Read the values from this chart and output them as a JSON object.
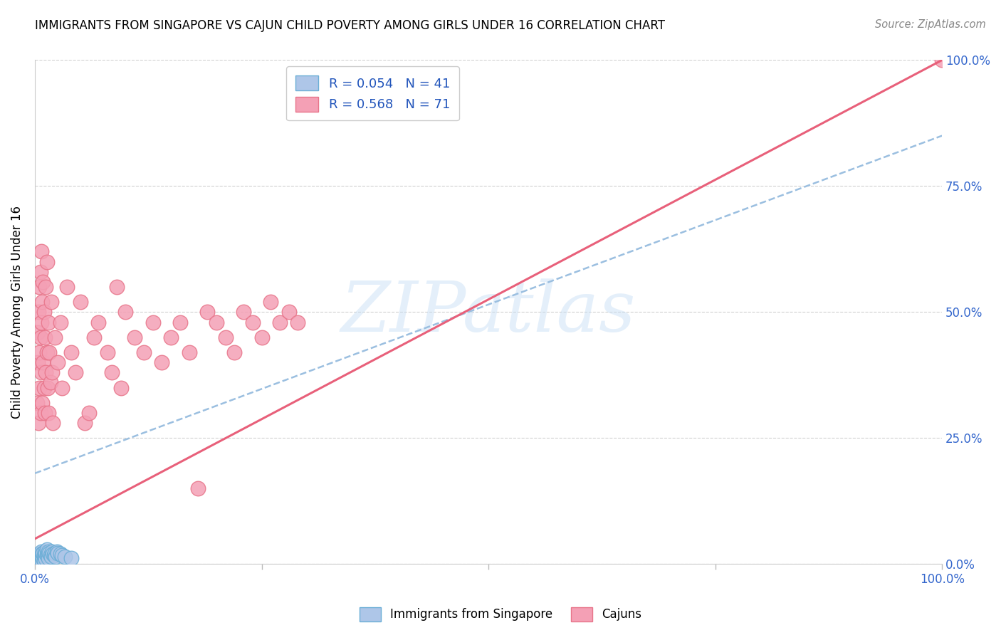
{
  "title": "IMMIGRANTS FROM SINGAPORE VS CAJUN CHILD POVERTY AMONG GIRLS UNDER 16 CORRELATION CHART",
  "source": "Source: ZipAtlas.com",
  "ylabel": "Child Poverty Among Girls Under 16",
  "legend_blue_r": "R = 0.054",
  "legend_blue_n": "N = 41",
  "legend_pink_r": "R = 0.568",
  "legend_pink_n": "N = 71",
  "watermark": "ZIPatlas",
  "blue_fill": "#aec6e8",
  "blue_edge": "#6baed6",
  "pink_fill": "#f4a0b5",
  "pink_edge": "#e8758a",
  "trend_blue_color": "#9bbfe0",
  "trend_pink_color": "#e8607a",
  "bottom_legend_blue": "Immigrants from Singapore",
  "bottom_legend_pink": "Cajuns",
  "xlim": [
    0.0,
    1.0
  ],
  "ylim": [
    0.0,
    1.0
  ],
  "ytick_values": [
    0.0,
    0.25,
    0.5,
    0.75,
    1.0
  ],
  "ytick_labels": [
    "0.0%",
    "25.0%",
    "50.0%",
    "75.0%",
    "100.0%"
  ],
  "blue_scatter_x": [
    0.003,
    0.003,
    0.004,
    0.004,
    0.005,
    0.005,
    0.005,
    0.006,
    0.006,
    0.007,
    0.007,
    0.007,
    0.008,
    0.008,
    0.009,
    0.009,
    0.01,
    0.01,
    0.011,
    0.011,
    0.012,
    0.012,
    0.013,
    0.013,
    0.014,
    0.015,
    0.015,
    0.016,
    0.017,
    0.018,
    0.019,
    0.02,
    0.021,
    0.022,
    0.023,
    0.024,
    0.025,
    0.028,
    0.03,
    0.033,
    0.04
  ],
  "blue_scatter_y": [
    0.005,
    0.01,
    0.003,
    0.008,
    0.005,
    0.012,
    0.02,
    0.008,
    0.015,
    0.01,
    0.018,
    0.025,
    0.005,
    0.02,
    0.012,
    0.022,
    0.008,
    0.018,
    0.015,
    0.025,
    0.01,
    0.022,
    0.018,
    0.028,
    0.02,
    0.012,
    0.025,
    0.022,
    0.018,
    0.015,
    0.025,
    0.02,
    0.018,
    0.022,
    0.015,
    0.025,
    0.022,
    0.02,
    0.018,
    0.015,
    0.012
  ],
  "pink_scatter_x": [
    0.002,
    0.003,
    0.003,
    0.004,
    0.004,
    0.005,
    0.005,
    0.005,
    0.006,
    0.006,
    0.006,
    0.007,
    0.007,
    0.007,
    0.008,
    0.008,
    0.009,
    0.009,
    0.01,
    0.01,
    0.011,
    0.011,
    0.012,
    0.012,
    0.013,
    0.013,
    0.014,
    0.015,
    0.015,
    0.016,
    0.017,
    0.018,
    0.019,
    0.02,
    0.022,
    0.025,
    0.028,
    0.03,
    0.035,
    0.04,
    0.045,
    0.05,
    0.055,
    0.06,
    0.065,
    0.07,
    0.08,
    0.085,
    0.09,
    0.095,
    0.1,
    0.11,
    0.12,
    0.13,
    0.14,
    0.15,
    0.16,
    0.17,
    0.18,
    0.19,
    0.2,
    0.21,
    0.22,
    0.23,
    0.24,
    0.25,
    0.26,
    0.27,
    0.28,
    0.29,
    1.0
  ],
  "pink_scatter_y": [
    0.32,
    0.4,
    0.46,
    0.28,
    0.5,
    0.35,
    0.42,
    0.55,
    0.3,
    0.45,
    0.58,
    0.38,
    0.48,
    0.62,
    0.32,
    0.52,
    0.4,
    0.56,
    0.35,
    0.5,
    0.3,
    0.45,
    0.38,
    0.55,
    0.42,
    0.6,
    0.35,
    0.3,
    0.48,
    0.42,
    0.36,
    0.52,
    0.38,
    0.28,
    0.45,
    0.4,
    0.48,
    0.35,
    0.55,
    0.42,
    0.38,
    0.52,
    0.28,
    0.3,
    0.45,
    0.48,
    0.42,
    0.38,
    0.55,
    0.35,
    0.5,
    0.45,
    0.42,
    0.48,
    0.4,
    0.45,
    0.48,
    0.42,
    0.15,
    0.5,
    0.48,
    0.45,
    0.42,
    0.5,
    0.48,
    0.45,
    0.52,
    0.48,
    0.5,
    0.48,
    1.0
  ],
  "blue_trend_x": [
    0.0,
    1.0
  ],
  "blue_trend_y": [
    0.18,
    0.85
  ],
  "pink_trend_x": [
    0.0,
    1.0
  ],
  "pink_trend_y": [
    0.05,
    1.0
  ]
}
